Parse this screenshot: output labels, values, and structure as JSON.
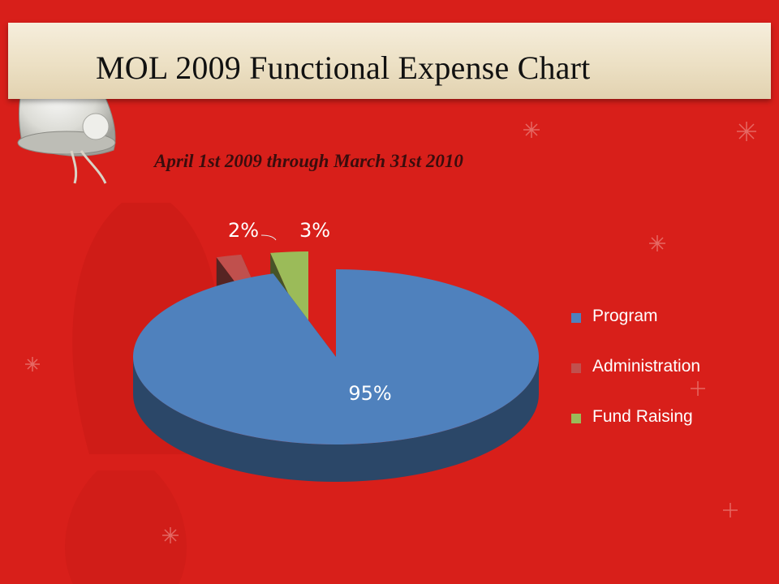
{
  "slide": {
    "title": "MOL 2009 Functional Expense Chart",
    "subtitle": "April 1st 2009 through March 31st 2010"
  },
  "chart_data": {
    "type": "pie",
    "title": "",
    "categories": [
      "Program",
      "Administration",
      "Fund Raising"
    ],
    "values": [
      95,
      2,
      3
    ],
    "data_labels": [
      "95%",
      "2%",
      "3%"
    ],
    "colors": [
      "#4f81bd",
      "#c0504d",
      "#9bbb59"
    ],
    "legend": "right",
    "style": "3d-exploded"
  }
}
